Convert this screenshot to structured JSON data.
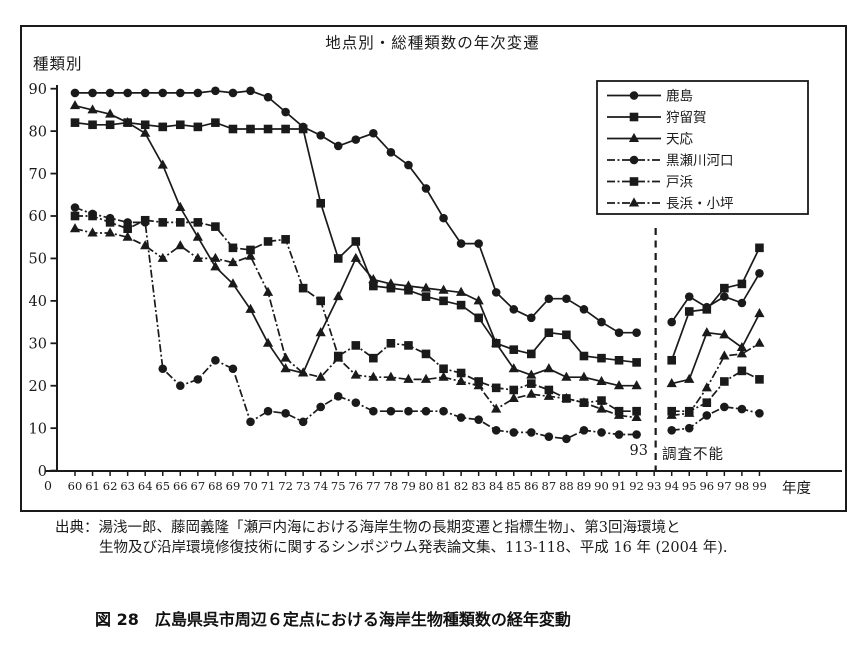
{
  "chart_data": {
    "type": "line",
    "title": "地点別・総種類数の年次変遷",
    "ylabel": "種類別",
    "xlabel": "年度",
    "x_origin_label": "0",
    "ylim": [
      0,
      90
    ],
    "y_ticks": [
      0,
      10,
      20,
      30,
      40,
      50,
      60,
      70,
      80,
      90
    ],
    "grid": false,
    "legend_position": "top-right",
    "years": [
      60,
      61,
      62,
      63,
      64,
      65,
      66,
      67,
      68,
      69,
      70,
      71,
      72,
      73,
      74,
      75,
      76,
      77,
      78,
      79,
      80,
      81,
      82,
      83,
      84,
      85,
      86,
      87,
      88,
      89,
      90,
      91,
      92,
      93,
      94,
      95,
      96,
      97,
      98,
      99
    ],
    "gap_year": 93,
    "gap_label": "93",
    "gap_note": "調査不能",
    "series": [
      {
        "key": "kashima",
        "name": "鹿島",
        "marker": "circle",
        "line": "solid",
        "values": [
          89,
          89,
          89,
          89,
          89,
          89,
          89,
          89,
          89.5,
          89,
          89.5,
          88,
          84.5,
          81,
          79,
          76.5,
          78,
          79.5,
          75,
          72,
          66.5,
          59.5,
          53.5,
          53.5,
          42,
          38,
          36,
          40.5,
          40.5,
          38,
          35,
          32.5,
          32.5,
          null,
          35,
          41,
          38.5,
          41,
          39.5,
          46.5
        ]
      },
      {
        "key": "karuga",
        "name": "狩留賀",
        "marker": "square",
        "line": "solid",
        "values": [
          82,
          81.5,
          81.5,
          82,
          81.5,
          81,
          81.5,
          81,
          82,
          80.5,
          80.5,
          80.5,
          80.5,
          80.5,
          63,
          50,
          54,
          43.5,
          43,
          42.5,
          41,
          40,
          39,
          36,
          30,
          28.5,
          27.5,
          32.5,
          32,
          27,
          26.5,
          26,
          25.5,
          null,
          26,
          37.5,
          38,
          43,
          44,
          52.5
        ]
      },
      {
        "key": "tenno",
        "name": "天応",
        "marker": "triangle",
        "line": "solid",
        "values": [
          86,
          85,
          84,
          82,
          79.5,
          72,
          62,
          55,
          48,
          44,
          38,
          30,
          24,
          23,
          32.5,
          41,
          50,
          45,
          44,
          43.5,
          43,
          42.5,
          42,
          40,
          30,
          24,
          22.5,
          24,
          22,
          22,
          21,
          20,
          20,
          null,
          20.5,
          21.5,
          32.5,
          32,
          29,
          37
        ]
      },
      {
        "key": "kurose-kawaguchi",
        "name": "黒瀬川河口",
        "marker": "circle",
        "line": "dashed",
        "values": [
          62,
          60.5,
          59.5,
          58.5,
          58.5,
          24,
          20,
          21.5,
          26,
          24,
          11.5,
          14,
          13.5,
          11.5,
          15,
          17.5,
          16,
          14,
          14,
          14,
          14,
          14,
          12.5,
          12,
          9.5,
          9,
          9,
          8,
          7.5,
          9.5,
          9,
          8.5,
          8.5,
          null,
          9.5,
          10,
          13,
          15,
          14.5,
          13.5
        ]
      },
      {
        "key": "tohama",
        "name": "戸浜",
        "marker": "square",
        "line": "dashed",
        "values": [
          60,
          60,
          58.5,
          57,
          59,
          58.5,
          58.5,
          58.5,
          57.5,
          52.5,
          52,
          54,
          54.5,
          43,
          40,
          27,
          29.5,
          26.5,
          30,
          29.5,
          27.5,
          24,
          23,
          21,
          19.5,
          19,
          20.5,
          19,
          17,
          16,
          16.5,
          14,
          14,
          null,
          14,
          14,
          16,
          21,
          23.5,
          21.5
        ]
      },
      {
        "key": "nagahama-kotsubo",
        "name": "長浜・小坪",
        "marker": "triangle",
        "line": "dashed",
        "values": [
          57,
          56,
          56,
          55,
          53,
          50,
          53,
          50,
          50,
          49,
          50.5,
          42,
          26.5,
          23,
          22,
          26.5,
          22.5,
          22,
          22,
          21.5,
          21.5,
          22,
          21,
          20,
          14.5,
          17,
          18,
          17.5,
          17,
          16,
          14.5,
          13,
          12.5,
          null,
          13,
          13.5,
          19.5,
          27,
          27.5,
          30
        ]
      }
    ],
    "ink_color": "#1a1a1a"
  },
  "captions": {
    "source_line1": "出典：湯浅一郎、藤岡義隆「瀬戸内海における海岸生物の長期変遷と指標生物」、第3回海環境と",
    "source_line2": "生物及び沿岸環境修復技術に関するシンポジウム発表論文集、113-118、平成 16 年 (2004 年).",
    "figure": "図 28　広島県呉市周辺６定点における海岸生物種類数の経年変動"
  }
}
